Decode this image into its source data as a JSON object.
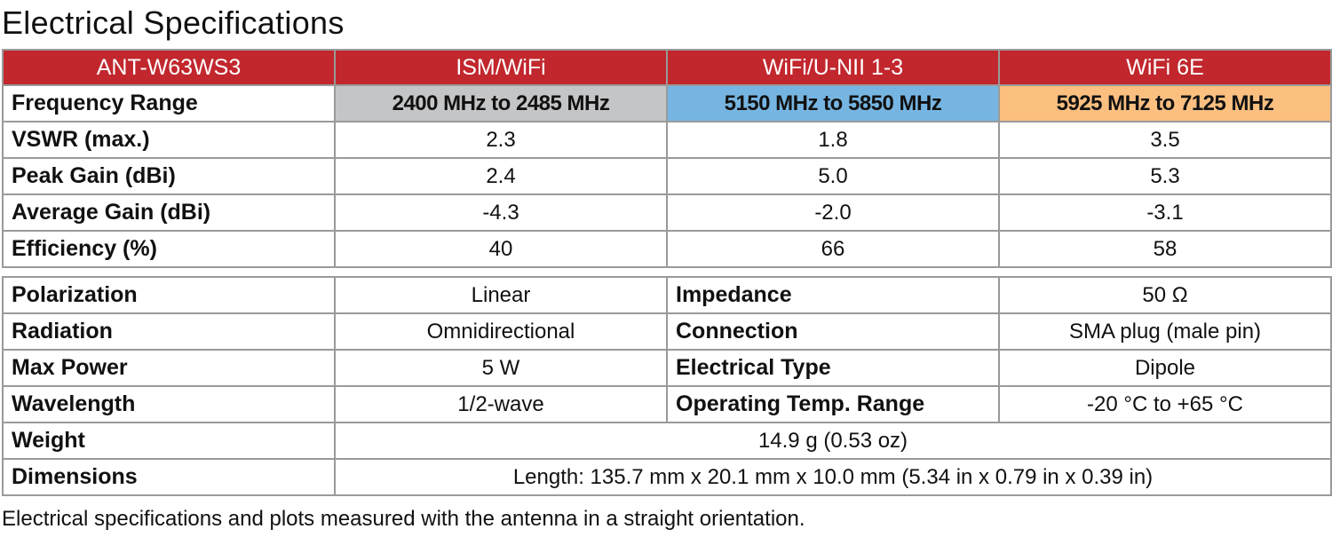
{
  "title": "Electrical Specifications",
  "header": [
    "ANT-W63WS3",
    "ISM/WiFi",
    "WiFi/U-NII 1-3",
    "WiFi 6E"
  ],
  "colors": {
    "header_bg": "#c1272d",
    "ism_band": "#c4c5c7",
    "unii_band": "#76b5e2",
    "wifi6e_band": "#fbbf80"
  },
  "band_rows": [
    {
      "label": "Frequency Range",
      "values": [
        "2400 MHz to 2485 MHz",
        "5150 MHz to 5850 MHz",
        "5925 MHz to 7125 MHz"
      ]
    },
    {
      "label": "VSWR (max.)",
      "values": [
        "2.3",
        "1.8",
        "3.5"
      ]
    },
    {
      "label": "Peak Gain (dBi)",
      "values": [
        "2.4",
        "5.0",
        "5.3"
      ]
    },
    {
      "label": "Average Gain (dBi)",
      "values": [
        "-4.3",
        "-2.0",
        "-3.1"
      ]
    },
    {
      "label": "Efficiency (%)",
      "values": [
        "40",
        "66",
        "58"
      ]
    }
  ],
  "general_rows": [
    {
      "label1": "Polarization",
      "value1": "Linear",
      "label2": "Impedance",
      "value2": "50 Ω"
    },
    {
      "label1": "Radiation",
      "value1": "Omnidirectional",
      "label2": "Connection",
      "value2": "SMA plug (male pin)"
    },
    {
      "label1": "Max Power",
      "value1": "5 W",
      "label2": "Electrical Type",
      "value2": "Dipole"
    },
    {
      "label1": "Wavelength",
      "value1": "1/2-wave",
      "label2": "Operating Temp. Range",
      "value2": "-20 °C to +65 °C"
    }
  ],
  "weight": {
    "label": "Weight",
    "value": "14.9 g (0.53 oz)"
  },
  "dimensions": {
    "label": "Dimensions",
    "value": "Length: 135.7 mm x 20.1 mm x 10.0 mm (5.34 in x 0.79 in x 0.39 in)"
  },
  "footnote": "Electrical specifications and plots measured with the antenna in a straight orientation."
}
